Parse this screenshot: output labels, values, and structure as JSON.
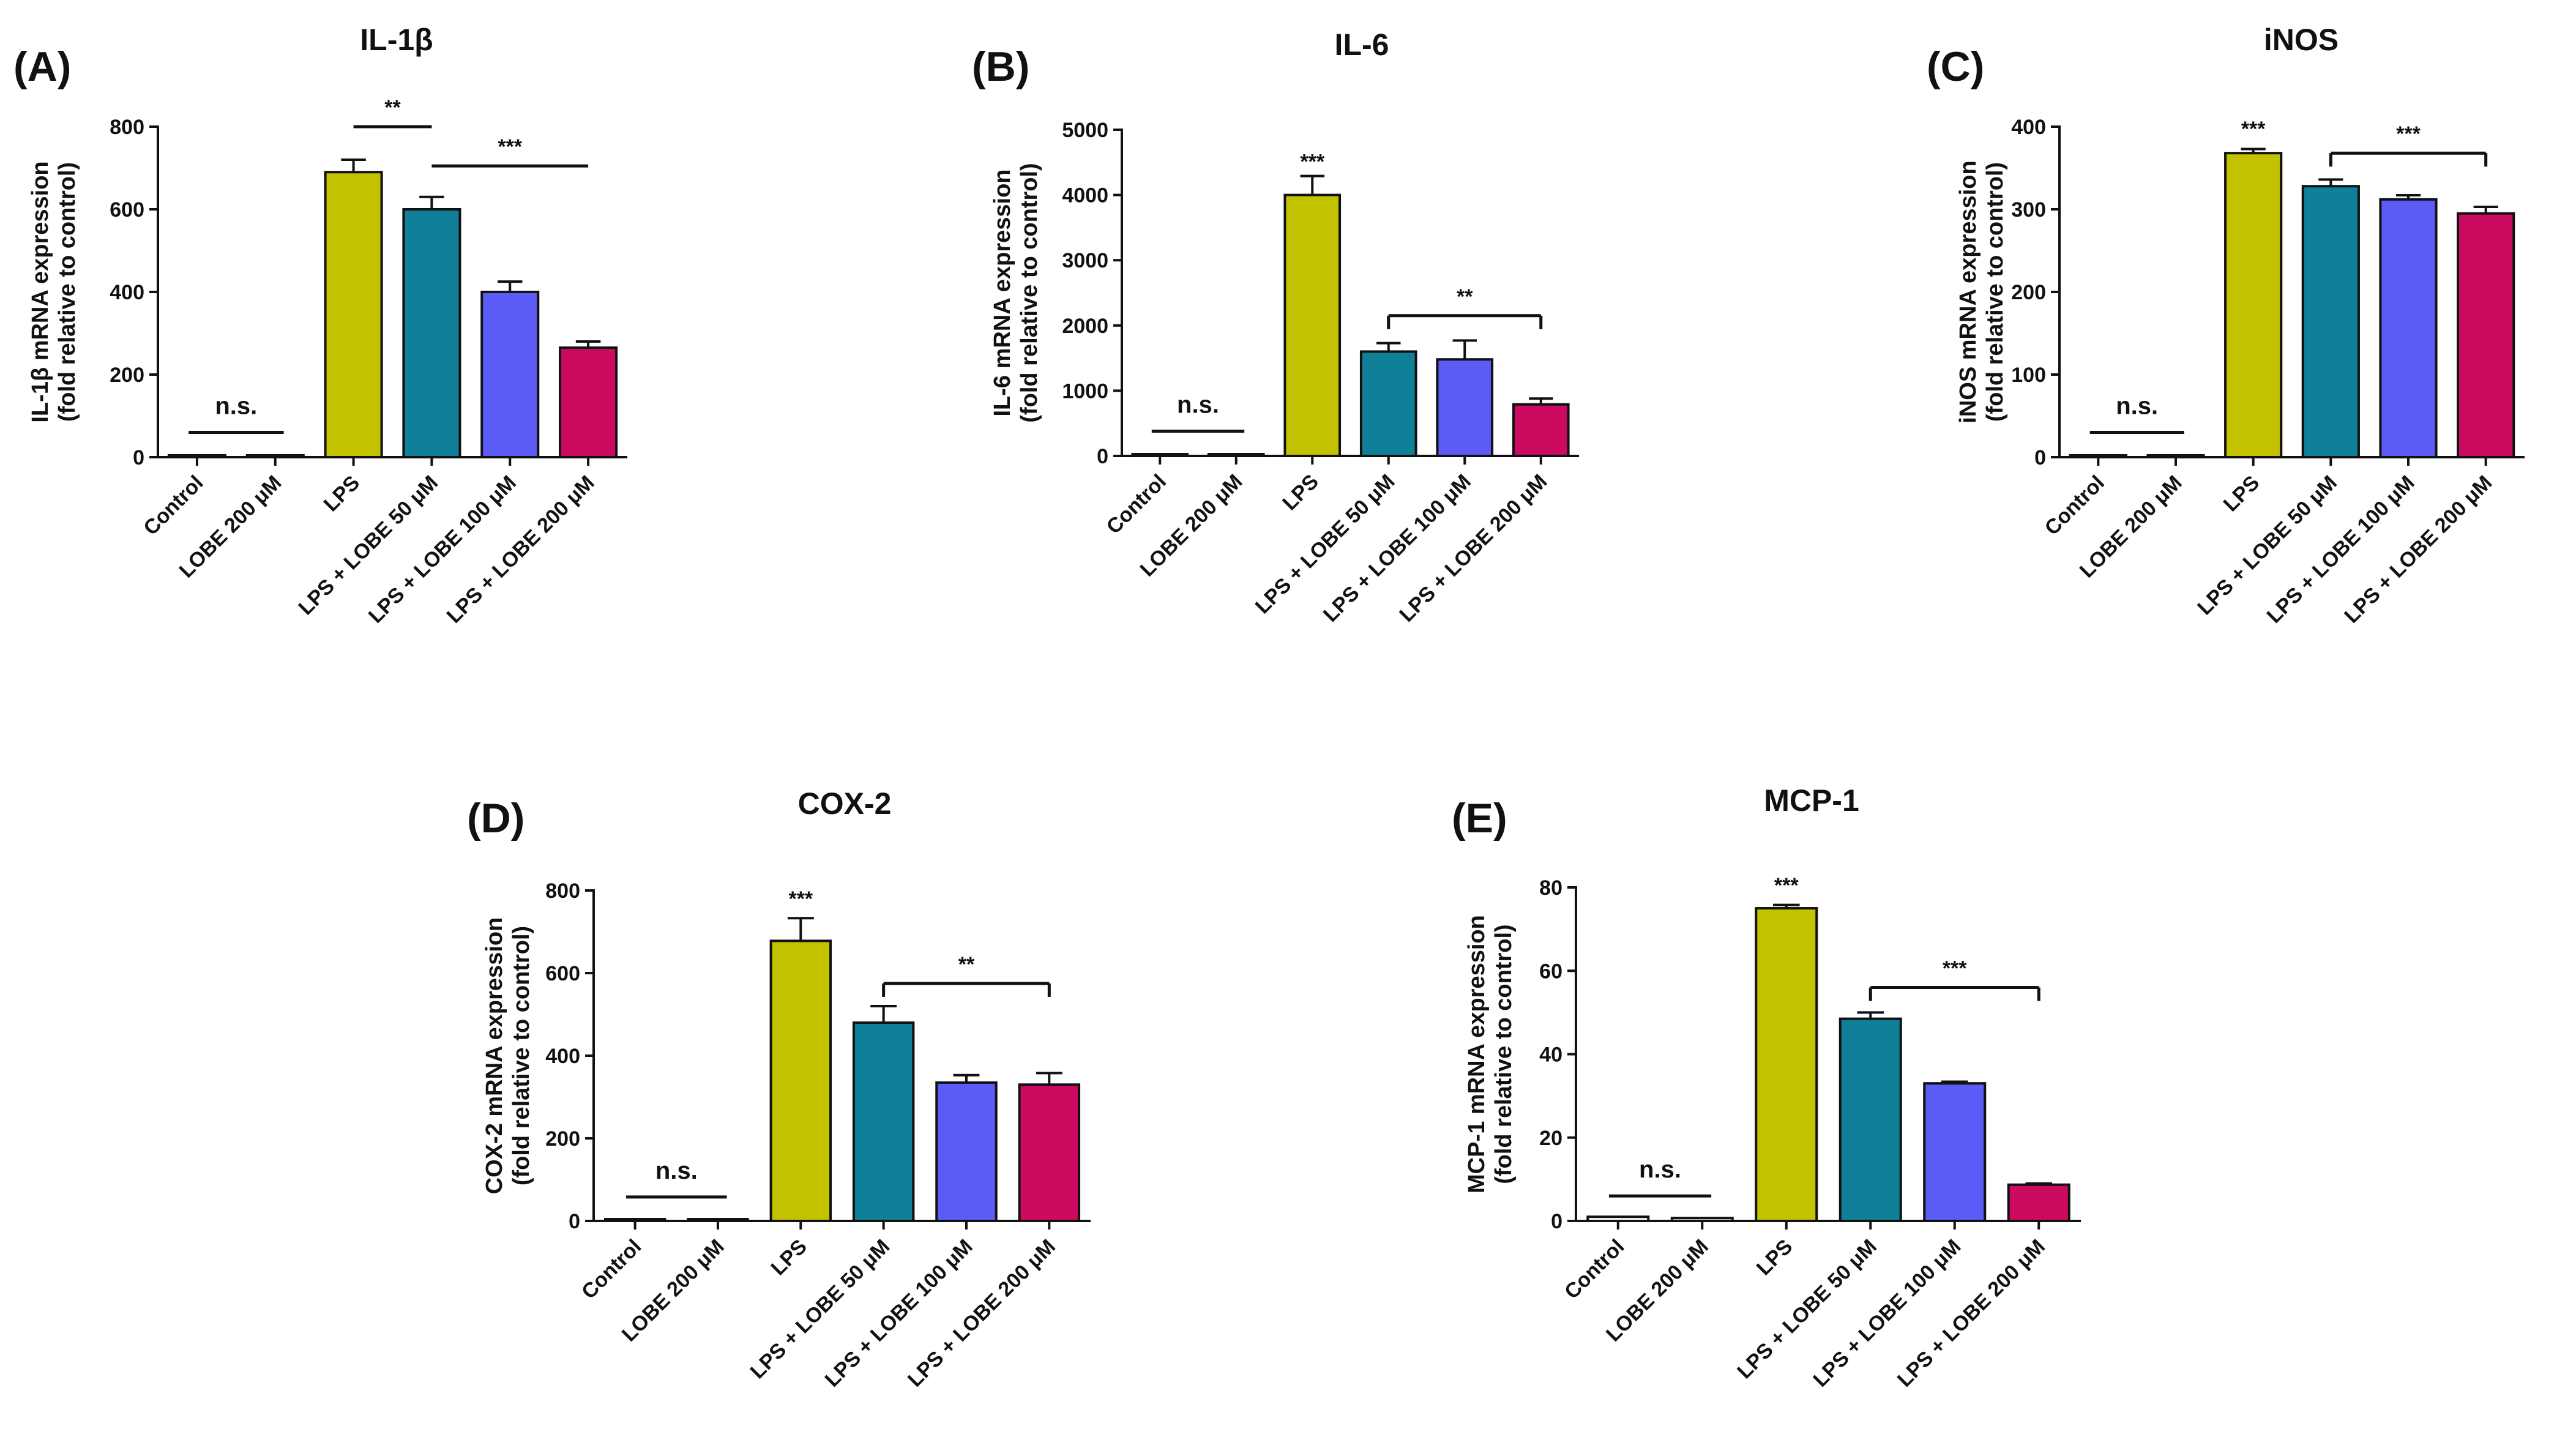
{
  "colors": {
    "control": "#ffffff",
    "lobe": "#ffffff",
    "lps": "#c2c200",
    "lps_lobe_50": "#0f8097",
    "lps_lobe_100": "#5b5bf6",
    "lps_lobe_200": "#cc0a60",
    "axis": "#111111"
  },
  "chart_data": [
    {
      "type": "bar",
      "panel_label": "(A)",
      "title": "IL-1β",
      "ylabel_lines": [
        "IL-1β mRNA expression",
        "(fold relative to control)"
      ],
      "ylim": [
        0,
        800
      ],
      "yticks": [
        0,
        200,
        400,
        600,
        800
      ],
      "categories": [
        "Control",
        "LOBE 200 μM",
        "LPS",
        "LPS + LOBE 50 μM",
        "LPS + LOBE 100 μM",
        "LPS + LOBE 200 μM"
      ],
      "values": [
        1,
        1,
        690,
        600,
        400,
        265
      ],
      "errors": [
        0,
        0,
        30,
        30,
        25,
        15
      ],
      "annotations": [
        {
          "text": "n.s.",
          "type": "ns",
          "from": 0,
          "to": 1,
          "y": 60
        },
        {
          "text": "**",
          "type": "bracket",
          "from": 2,
          "to": 3,
          "y": 800
        },
        {
          "text": "***",
          "type": "bracket",
          "from": 3,
          "to": 5,
          "y": 705
        }
      ]
    },
    {
      "type": "bar",
      "panel_label": "(B)",
      "title": "IL-6",
      "ylabel_lines": [
        "IL-6 mRNA expression",
        "(fold relative to control)"
      ],
      "ylim": [
        0,
        5000
      ],
      "yticks": [
        0,
        1000,
        2000,
        3000,
        4000,
        5000
      ],
      "categories": [
        "Control",
        "LOBE 200 μM",
        "LPS",
        "LPS + LOBE 50 μM",
        "LPS + LOBE 100 μM",
        "LPS + LOBE 200 μM"
      ],
      "values": [
        1,
        1,
        4000,
        1600,
        1480,
        790
      ],
      "errors": [
        0,
        0,
        290,
        130,
        290,
        90
      ],
      "annotations": [
        {
          "text": "n.s.",
          "type": "ns",
          "from": 0,
          "to": 1,
          "y": 380
        },
        {
          "text": "***",
          "type": "star",
          "index": 2,
          "y": 4480
        },
        {
          "text": "**",
          "type": "bracket",
          "from": 3,
          "to": 5,
          "y": 2150
        }
      ]
    },
    {
      "type": "bar",
      "panel_label": "(C)",
      "title": "iNOS",
      "ylabel_lines": [
        "iNOS mRNA expression",
        "(fold relative to control)"
      ],
      "ylim": [
        0,
        400
      ],
      "yticks": [
        0,
        100,
        200,
        300,
        400
      ],
      "categories": [
        "Control",
        "LOBE 200 μM",
        "LPS",
        "LPS + LOBE 50 μM",
        "LPS + LOBE 100 μM",
        "LPS + LOBE 200 μM"
      ],
      "values": [
        1,
        1,
        368,
        328,
        312,
        295
      ],
      "errors": [
        0,
        0,
        5,
        8,
        5,
        8
      ],
      "annotations": [
        {
          "text": "n.s.",
          "type": "ns",
          "from": 0,
          "to": 1,
          "y": 30
        },
        {
          "text": "***",
          "type": "star",
          "index": 2,
          "y": 395
        },
        {
          "text": "***",
          "type": "bracket",
          "from": 3,
          "to": 5,
          "y": 368
        }
      ]
    },
    {
      "type": "bar",
      "panel_label": "(D)",
      "title": "COX-2",
      "ylabel_lines": [
        "COX-2 mRNA expression",
        "(fold relative to control)"
      ],
      "ylim": [
        0,
        800
      ],
      "yticks": [
        0,
        200,
        400,
        600,
        800
      ],
      "categories": [
        "Control",
        "LOBE 200 μM",
        "LPS",
        "LPS + LOBE 50 μM",
        "LPS + LOBE 100 μM",
        "LPS + LOBE 200 μM"
      ],
      "values": [
        1,
        1,
        678,
        480,
        335,
        330
      ],
      "errors": [
        0,
        0,
        55,
        40,
        18,
        28
      ],
      "annotations": [
        {
          "text": "n.s.",
          "type": "ns",
          "from": 0,
          "to": 1,
          "y": 58
        },
        {
          "text": "***",
          "type": "star",
          "index": 2,
          "y": 775
        },
        {
          "text": "**",
          "type": "bracket",
          "from": 3,
          "to": 5,
          "y": 575
        }
      ]
    },
    {
      "type": "bar",
      "panel_label": "(E)",
      "title": "MCP-1",
      "ylabel_lines": [
        "MCP-1 mRNA expression",
        "(fold relative to control)"
      ],
      "ylim": [
        0,
        80
      ],
      "yticks": [
        0,
        20,
        40,
        60,
        80
      ],
      "categories": [
        "Control",
        "LOBE 200 μM",
        "LPS",
        "LPS + LOBE 50 μM",
        "LPS + LOBE 100 μM",
        "LPS + LOBE 200 μM"
      ],
      "values": [
        1,
        0.7,
        75,
        48.5,
        33,
        8.7
      ],
      "errors": [
        0,
        0,
        0.8,
        1.5,
        0.4,
        0.3
      ],
      "annotations": [
        {
          "text": "n.s.",
          "type": "ns",
          "from": 0,
          "to": 1,
          "y": 6
        },
        {
          "text": "***",
          "type": "star",
          "index": 2,
          "y": 80
        },
        {
          "text": "***",
          "type": "bracket",
          "from": 3,
          "to": 5,
          "y": 56
        }
      ]
    }
  ]
}
